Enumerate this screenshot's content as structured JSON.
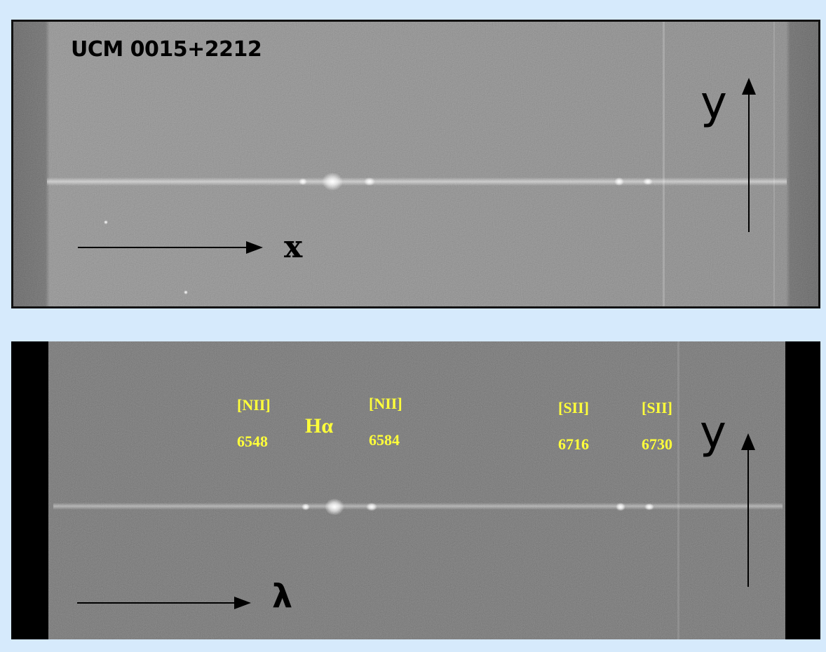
{
  "top_panel": {
    "title": "UCM 0015+2212",
    "x_axis_label": "x",
    "y_axis_label": "y"
  },
  "bottom_panel": {
    "x_axis_label": "λ",
    "y_axis_label": "y",
    "lines": [
      {
        "ion": "[NII]",
        "wavelength": "6548"
      },
      {
        "ion": "Hα",
        "wavelength": ""
      },
      {
        "ion": "[NII]",
        "wavelength": "6584"
      },
      {
        "ion": "[SII]",
        "wavelength": "6716"
      },
      {
        "ion": "[SII]",
        "wavelength": "6730"
      }
    ]
  },
  "colors": {
    "background": "#d6eafc",
    "label": "#ffff3a",
    "axis": "#000000"
  }
}
